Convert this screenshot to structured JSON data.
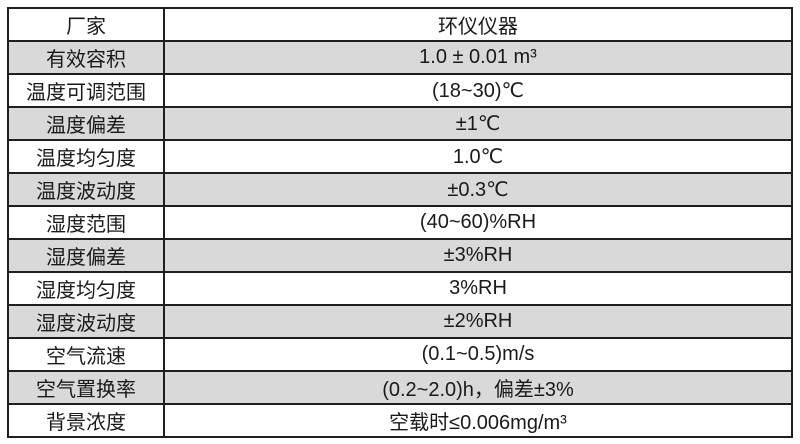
{
  "table": {
    "rows": [
      {
        "label": "厂家",
        "value": "环仪仪器"
      },
      {
        "label": "有效容积",
        "value": "1.0 ± 0.01 m³"
      },
      {
        "label": "温度可调范围",
        "value": "(18~30)℃"
      },
      {
        "label": "温度偏差",
        "value": "±1℃"
      },
      {
        "label": "温度均匀度",
        "value": "1.0℃"
      },
      {
        "label": "温度波动度",
        "value": "±0.3℃"
      },
      {
        "label": "湿度范围",
        "value": "(40~60)%RH"
      },
      {
        "label": "湿度偏差",
        "value": "±3%RH"
      },
      {
        "label": "湿度均匀度",
        "value": "3%RH"
      },
      {
        "label": "湿度波动度",
        "value": "±2%RH"
      },
      {
        "label": "空气流速",
        "value": "(0.1~0.5)m/s"
      },
      {
        "label": "空气置换率",
        "value": "(0.2~2.0)h，偏差±3%"
      },
      {
        "label": "背景浓度",
        "value": "空载时≤0.006mg/m³"
      }
    ],
    "colors": {
      "alt_row_bg": "#d9d9d9",
      "row_bg": "#ffffff",
      "border": "#1f1f1f",
      "text": "#1a1a1a"
    }
  }
}
